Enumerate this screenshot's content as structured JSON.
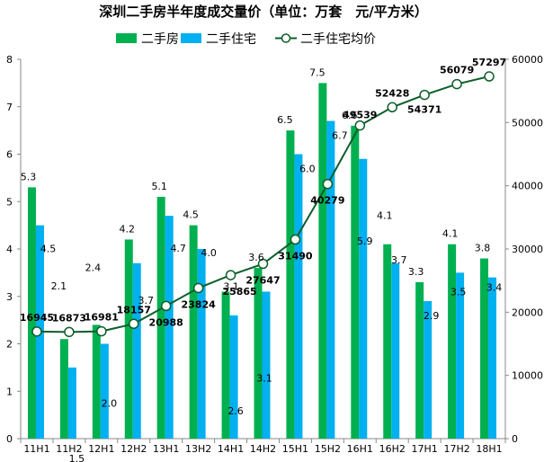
{
  "chart_data": {
    "type": "bar",
    "title": "深圳二手房半年度成交量价（单位：万套　元/平方米）",
    "categories": [
      "11H1",
      "11H2",
      "12H1",
      "12H2",
      "13H1",
      "13H2",
      "14H1",
      "14H2",
      "15H1",
      "15H2",
      "16H1",
      "16H2",
      "17H1",
      "17H2",
      "18H1"
    ],
    "series": [
      {
        "name": "二手房",
        "type": "bar",
        "axis": "left",
        "color": "#00b050",
        "values": [
          5.3,
          2.1,
          2.4,
          4.2,
          5.1,
          4.5,
          3.1,
          3.6,
          6.5,
          7.5,
          6.6,
          4.1,
          3.3,
          4.1,
          3.8
        ]
      },
      {
        "name": "二手住宅",
        "type": "bar",
        "axis": "left",
        "color": "#00b0f0",
        "values": [
          4.5,
          1.5,
          2.0,
          3.7,
          4.7,
          4.0,
          2.6,
          3.1,
          6.0,
          6.7,
          5.9,
          3.7,
          2.9,
          3.5,
          3.4
        ]
      },
      {
        "name": "二手住宅均价",
        "type": "line",
        "axis": "right",
        "color": "#0d5e2a",
        "values": [
          16945,
          16873,
          16981,
          18157,
          20988,
          23824,
          25865,
          27647,
          31490,
          40279,
          49539,
          52428,
          54371,
          56079,
          57297
        ]
      }
    ],
    "y_left": {
      "min": 0,
      "max": 8,
      "ticks": [
        "0",
        "1",
        "2",
        "3",
        "4",
        "5",
        "6",
        "7",
        "8"
      ]
    },
    "y_right": {
      "min": 0,
      "max": 60000,
      "ticks": [
        "0",
        "10000",
        "20000",
        "30000",
        "40000",
        "50000",
        "60000"
      ]
    },
    "legend": {
      "position": "top",
      "entries": [
        "二手房",
        "二手住宅",
        "二手住宅均价"
      ]
    },
    "grid": false
  }
}
